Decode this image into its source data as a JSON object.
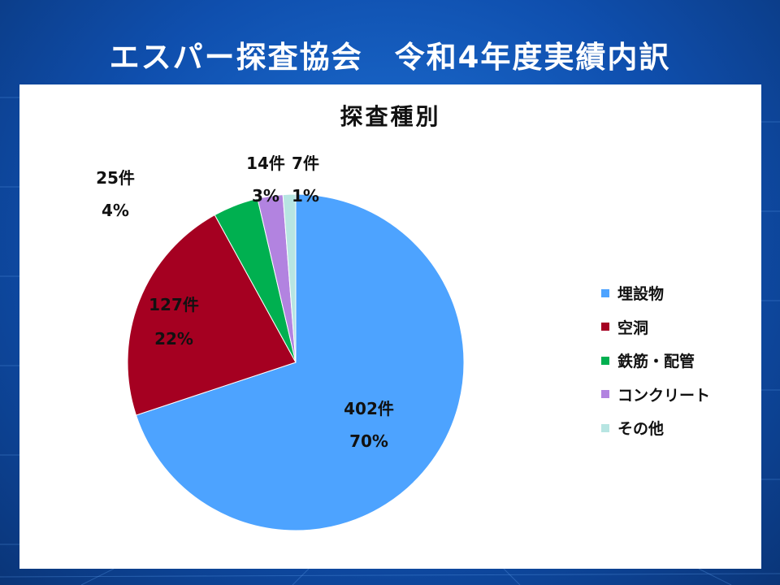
{
  "slide": {
    "title": "エスパー探査協会　令和4年度実績内訳"
  },
  "chart_data": {
    "type": "pie",
    "title": "探査種別",
    "legend_position": "right",
    "slices": [
      {
        "name": "埋設物",
        "count": 402,
        "count_label": "402件",
        "percent_label": "70%",
        "color": "#4DA3FF"
      },
      {
        "name": "空洞",
        "count": 127,
        "count_label": "127件",
        "percent_label": "22%",
        "color": "#A50021"
      },
      {
        "name": "鉄筋・配管",
        "count": 25,
        "count_label": "25件",
        "percent_label": "4%",
        "color": "#00B050"
      },
      {
        "name": "コンクリート",
        "count": 14,
        "count_label": "14件",
        "percent_label": "3%",
        "color": "#B283E0"
      },
      {
        "name": "その他",
        "count": 7,
        "count_label": "7件",
        "percent_label": "1%",
        "color": "#B7E5E2"
      }
    ]
  }
}
